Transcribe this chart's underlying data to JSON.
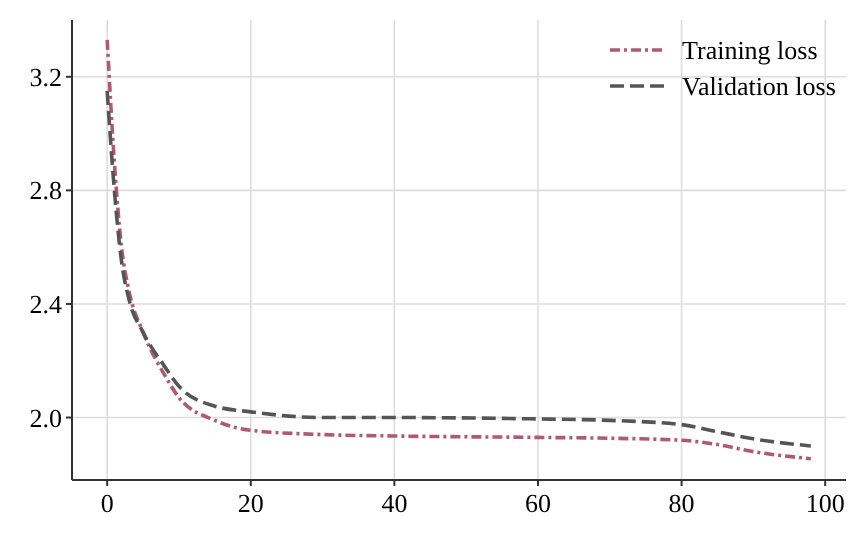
{
  "chart_data": {
    "type": "line",
    "xlim": [
      -4.9,
      102.9
    ],
    "ylim": [
      1.78,
      3.4
    ],
    "xticks": [
      0,
      20,
      40,
      60,
      80,
      100
    ],
    "yticks": [
      {
        "value": 2.0,
        "label": "2.0"
      },
      {
        "value": 2.4,
        "label": "2.4"
      },
      {
        "value": 2.8,
        "label": "2.8"
      },
      {
        "value": 3.2,
        "label": "3.2"
      }
    ],
    "grid": true,
    "legend": "top right",
    "x": [
      0,
      1,
      2,
      3,
      5,
      8,
      10,
      15,
      20,
      30,
      40,
      60,
      70,
      80,
      85,
      90,
      98
    ],
    "series": [
      {
        "name": "Training loss",
        "color": "#b05a72",
        "line_style": "dashdot",
        "values": [
          3.33,
          2.9,
          2.6,
          2.45,
          2.3,
          2.15,
          2.07,
          1.99,
          1.955,
          1.94,
          1.935,
          1.93,
          1.927,
          1.92,
          1.905,
          1.88,
          1.855
        ]
      },
      {
        "name": "Validation loss",
        "color": "#555555",
        "line_style": "dashed",
        "values": [
          3.15,
          2.8,
          2.55,
          2.42,
          2.3,
          2.18,
          2.11,
          2.04,
          2.02,
          2.0,
          2.0,
          1.995,
          1.99,
          1.975,
          1.95,
          1.925,
          1.9
        ]
      }
    ]
  }
}
